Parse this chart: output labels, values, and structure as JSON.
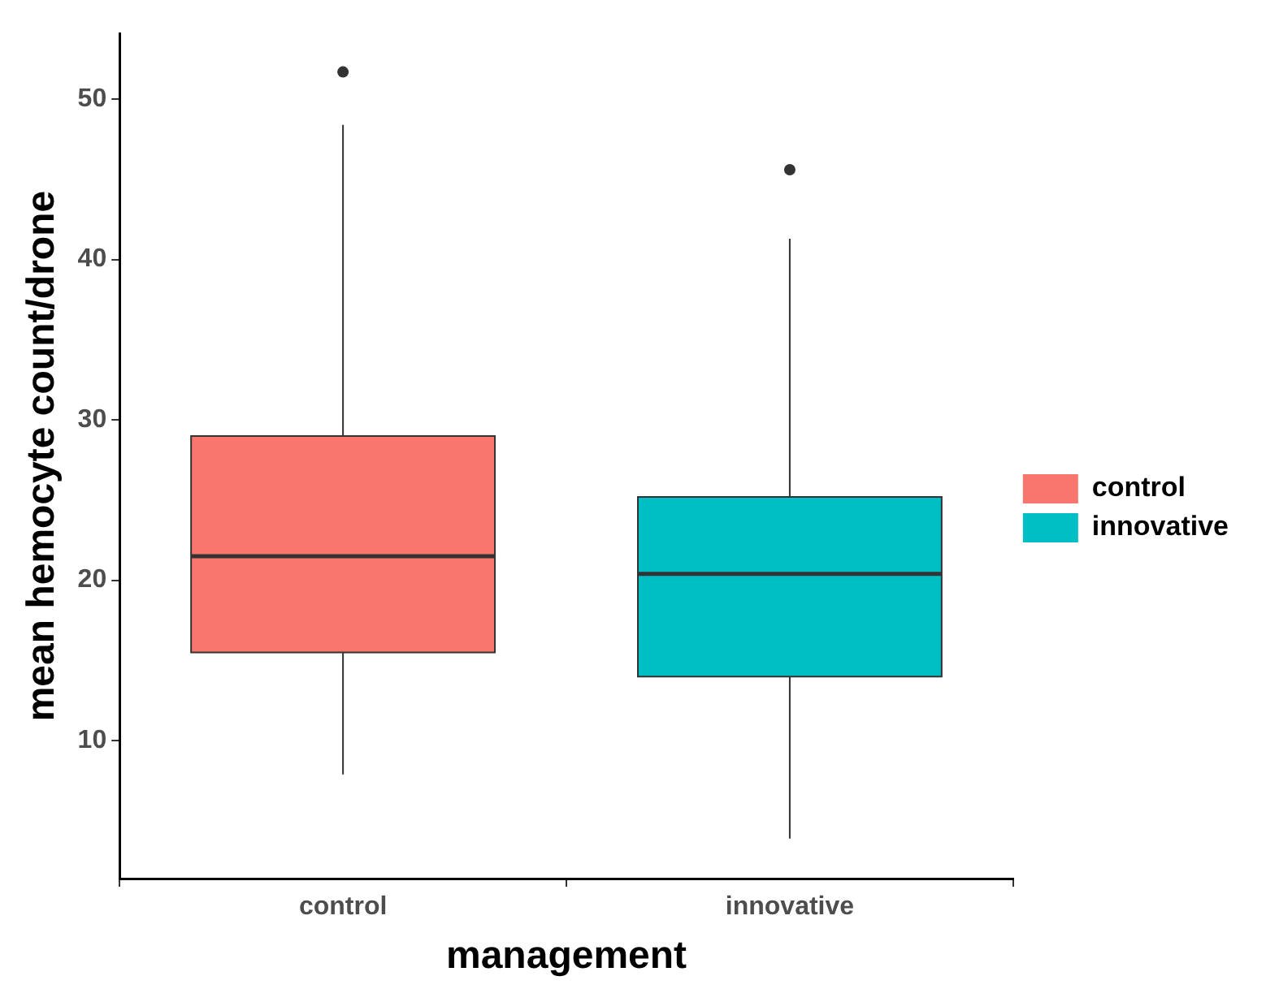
{
  "chart_data": {
    "type": "box",
    "xlabel": "management",
    "ylabel": "mean hemocyte count/drone",
    "categories": [
      "control",
      "innovative"
    ],
    "ylim": [
      1.4,
      54.1
    ],
    "yticks": [
      10,
      20,
      30,
      40,
      50
    ],
    "legend": "right",
    "series": [
      {
        "name": "control",
        "color": "#f8766d",
        "boxes": [
          {
            "low": 7.9,
            "q1": 15.5,
            "median": 21.5,
            "q3": 29.0,
            "high": 48.4,
            "outliers": [
              51.7
            ]
          },
          null
        ]
      },
      {
        "name": "innovative",
        "color": "#00bfc4",
        "boxes": [
          null,
          {
            "low": 3.9,
            "q1": 14.0,
            "median": 20.4,
            "q3": 25.2,
            "high": 41.3,
            "outliers": [
              45.6
            ]
          }
        ]
      }
    ]
  }
}
